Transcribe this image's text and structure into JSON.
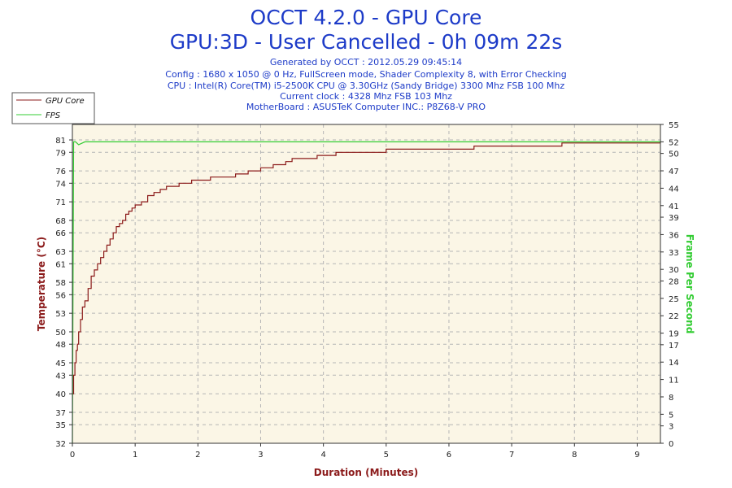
{
  "title": "OCCT 4.2.0 - GPU Core",
  "subtitle": "GPU:3D - User Cancelled - 0h 09m 22s",
  "info_lines": [
    "Generated by OCCT : 2012.05.29 09:45:14",
    "Config : 1680 x 1050 @ 0 Hz, FullScreen mode, Shader Complexity 8, with Error Checking",
    "CPU : Intel(R) Core(TM) i5-2500K CPU @ 3.30GHz (Sandy Bridge) 3300 Mhz FSB 100 Mhz",
    "Current clock : 4328 Mhz FSB 103 Mhz",
    "MotherBoard : ASUSTeK Computer INC.: P8Z68-V PRO"
  ],
  "colors": {
    "title": "#1d3bc8",
    "temperature": "#8b1a1a",
    "fps": "#33cc33",
    "plot_bg": "#fbf6e6",
    "grid": "#b5b5b5"
  },
  "chart_data": {
    "type": "line",
    "xlabel": "Duration (Minutes)",
    "ylabel_left": "Temperature (°C)",
    "ylabel_right": "Frame Per Second",
    "xlim": [
      0,
      9.37
    ],
    "ylim_left": [
      32,
      83.5
    ],
    "ylim_right": [
      0,
      55
    ],
    "x_ticks": [
      "0",
      "1",
      "2",
      "3",
      "4",
      "5",
      "6",
      "7",
      "8",
      "9"
    ],
    "y_left_ticks": [
      "32",
      "35",
      "37",
      "40",
      "43",
      "45",
      "48",
      "50",
      "53",
      "56",
      "58",
      "61",
      "63",
      "66",
      "68",
      "71",
      "74",
      "76",
      "79",
      "81"
    ],
    "y_right_ticks": [
      "0",
      "3",
      "5",
      "8",
      "11",
      "14",
      "17",
      "19",
      "22",
      "25",
      "28",
      "30",
      "33",
      "36",
      "39",
      "41",
      "44",
      "47",
      "50",
      "52",
      "55"
    ],
    "grid": true,
    "legend_position": "top-left",
    "series": [
      {
        "name": "GPU Core",
        "axis": "left",
        "x": [
          0,
          0.02,
          0.04,
          0.06,
          0.08,
          0.1,
          0.13,
          0.16,
          0.2,
          0.25,
          0.3,
          0.35,
          0.4,
          0.45,
          0.5,
          0.55,
          0.6,
          0.65,
          0.7,
          0.75,
          0.8,
          0.85,
          0.9,
          0.95,
          1.0,
          1.1,
          1.2,
          1.3,
          1.4,
          1.5,
          1.6,
          1.7,
          1.8,
          1.9,
          2.0,
          2.2,
          2.4,
          2.6,
          2.8,
          3.0,
          3.2,
          3.4,
          3.5,
          3.7,
          3.9,
          4.05,
          4.2,
          4.4,
          4.6,
          4.8,
          5.0,
          5.5,
          6.0,
          6.3,
          6.4,
          6.6,
          6.8,
          7.0,
          7.3,
          7.6,
          7.8,
          8.0,
          8.5,
          9.0,
          9.37
        ],
        "values": [
          40,
          43,
          45,
          47,
          48,
          50,
          52,
          54,
          55,
          57,
          59,
          60,
          61,
          62,
          63,
          64,
          65,
          66,
          67,
          67.5,
          68,
          69,
          69.5,
          70,
          70.5,
          71,
          72,
          72.5,
          73,
          73.5,
          73.5,
          74,
          74,
          74.5,
          74.5,
          75,
          75,
          75.5,
          76,
          76.5,
          77,
          77.5,
          78,
          78,
          78.5,
          78.5,
          79,
          79,
          79,
          79,
          79.5,
          79.5,
          79.5,
          79.5,
          80,
          80,
          80,
          80,
          80,
          80,
          80.5,
          80.5,
          80.5,
          80.5,
          80.5
        ]
      },
      {
        "name": "FPS",
        "axis": "right",
        "x": [
          0,
          0.02,
          0.05,
          0.1,
          0.2,
          0.5,
          1,
          2,
          3,
          4,
          5,
          6,
          7,
          8,
          9,
          9.37
        ],
        "values": [
          0,
          52,
          52,
          51.5,
          52,
          52,
          52,
          52,
          52,
          52,
          52,
          52,
          52,
          52,
          52,
          52
        ]
      }
    ]
  }
}
